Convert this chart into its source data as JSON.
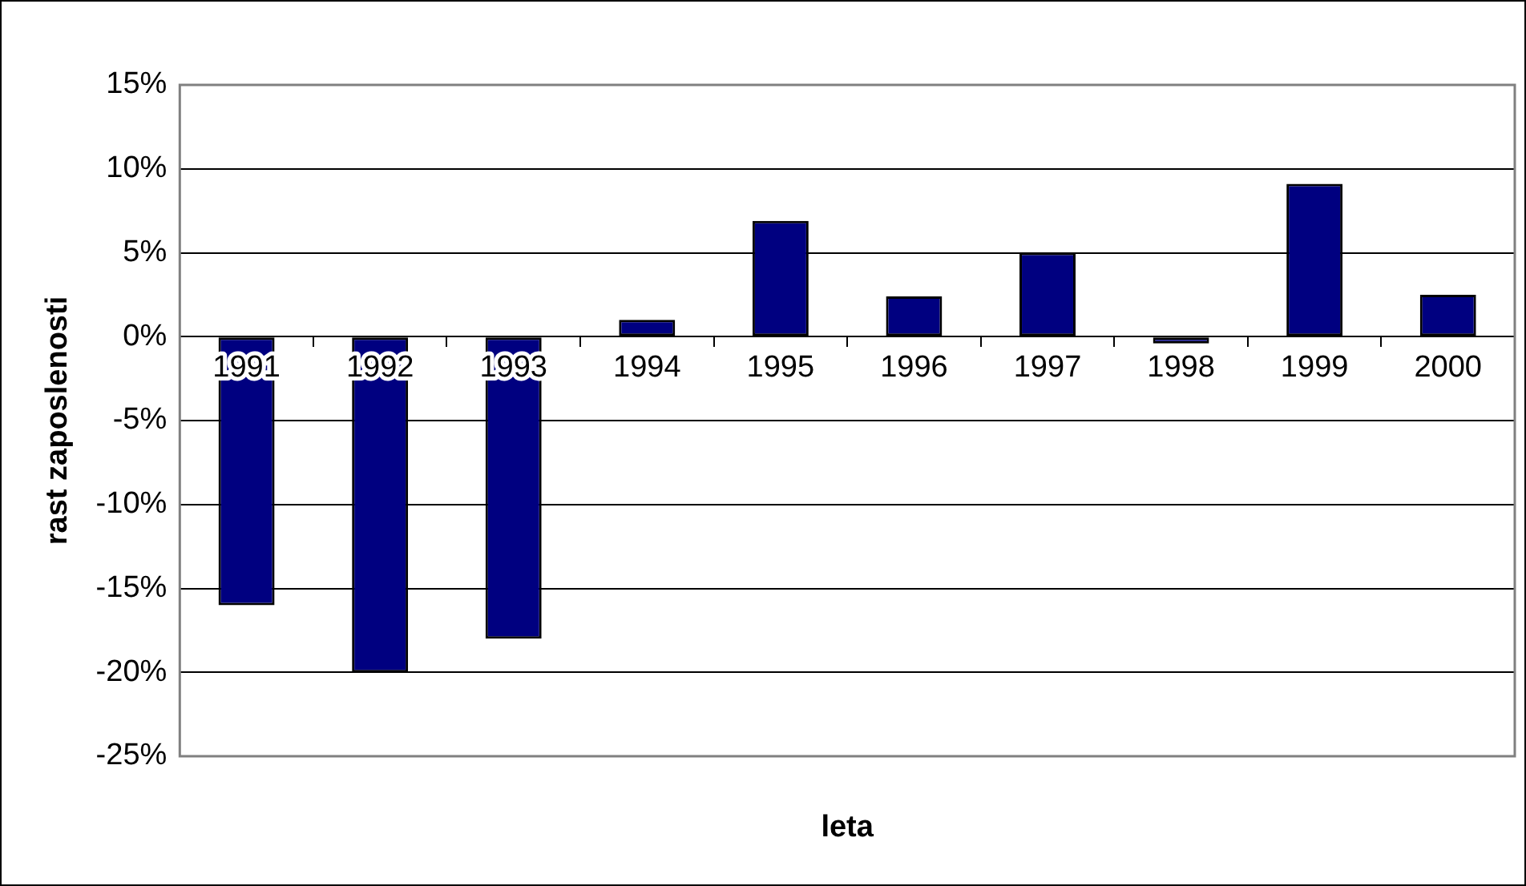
{
  "chart_data": {
    "type": "bar",
    "xlabel": "leta",
    "ylabel": "rast zaposlenosti",
    "categories": [
      "1991",
      "1992",
      "1993",
      "1994",
      "1995",
      "1996",
      "1997",
      "1998",
      "1999",
      "2000"
    ],
    "values": [
      -16,
      -20,
      -18,
      1.0,
      6.9,
      2.4,
      5.0,
      -0.4,
      9.1,
      2.5
    ],
    "color": "#000080",
    "ylim": [
      -25,
      15
    ],
    "yticks": [
      {
        "value": -25,
        "label": "-25%"
      },
      {
        "value": -20,
        "label": "-20%"
      },
      {
        "value": -15,
        "label": "-15%"
      },
      {
        "value": -10,
        "label": "-10%"
      },
      {
        "value": -5,
        "label": "-5%"
      },
      {
        "value": 0,
        "label": "0%"
      },
      {
        "value": 5,
        "label": "5%"
      },
      {
        "value": 10,
        "label": "10%"
      },
      {
        "value": 15,
        "label": "15%"
      }
    ],
    "grid": "y",
    "legend": false
  }
}
